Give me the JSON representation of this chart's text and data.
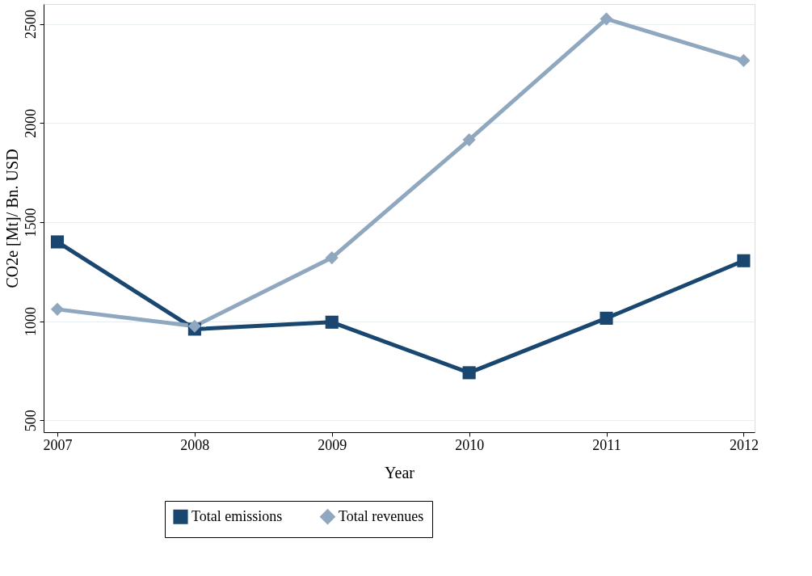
{
  "chart_data": {
    "type": "line",
    "xlabel": "Year",
    "ylabel": "CO2e [Mt]/ Bn. USD",
    "x": [
      2007,
      2008,
      2009,
      2010,
      2011,
      2012
    ],
    "series": [
      {
        "name": "Total emissions",
        "color": "#1a476f",
        "marker": "square",
        "values": [
          1400,
          960,
          995,
          740,
          1015,
          1305
        ]
      },
      {
        "name": "Total revenues",
        "color": "#90a8bf",
        "marker": "diamond",
        "values": [
          1060,
          975,
          1320,
          1915,
          2525,
          2315
        ]
      }
    ],
    "xlim": [
      2006.9,
      2012.08
    ],
    "xticks": [
      2007,
      2008,
      2009,
      2010,
      2011,
      2012
    ],
    "ylim": [
      440,
      2600
    ],
    "yticks": [
      500,
      1000,
      1500,
      2000,
      2500
    ],
    "grid": "y",
    "legend": "bottom",
    "line_style": "solid"
  }
}
